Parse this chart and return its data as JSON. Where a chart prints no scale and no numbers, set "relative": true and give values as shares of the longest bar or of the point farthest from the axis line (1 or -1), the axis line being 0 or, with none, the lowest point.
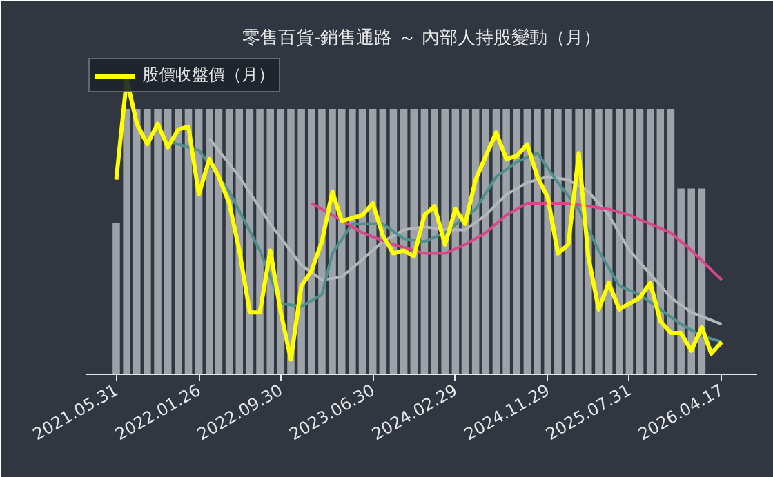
{
  "chart_data": {
    "type": "line",
    "title": "零售百貨-銷售通路 ～ 內部人持股變動（月）",
    "relative": true,
    "legend": "top left",
    "grid": false,
    "marker": "none",
    "line_style": "solid",
    "x": [
      "2021-05",
      "2021-06",
      "2021-07",
      "2021-08",
      "2021-09",
      "2021-10",
      "2021-11",
      "2021-12",
      "2022-01",
      "2022-02",
      "2022-03",
      "2022-04",
      "2022-05",
      "2022-06",
      "2022-07",
      "2022-08",
      "2022-09",
      "2022-10",
      "2022-11",
      "2022-12",
      "2023-01",
      "2023-02",
      "2023-03",
      "2023-04",
      "2023-05",
      "2023-06",
      "2023-07",
      "2023-08",
      "2023-09",
      "2023-10",
      "2023-11",
      "2023-12",
      "2024-01",
      "2024-02",
      "2024-03",
      "2024-04",
      "2024-05",
      "2024-06",
      "2024-07",
      "2024-08",
      "2024-09",
      "2024-10",
      "2024-11",
      "2024-12",
      "2025-01",
      "2025-02",
      "2025-03",
      "2025-04",
      "2025-05",
      "2025-06",
      "2025-07",
      "2025-08",
      "2025-09",
      "2025-10",
      "2025-11",
      "2025-12",
      "2026-01",
      "2026-02",
      "2026-03",
      "2026-04"
    ],
    "xlim": [
      "2021-02-01",
      "2026-07-15"
    ],
    "xticks": [
      {
        "value": "2021-05",
        "label": "2021.05.31"
      },
      {
        "value": "2022-01",
        "label": "2022.01.26"
      },
      {
        "value": "2022-09",
        "label": "2022.09.30"
      },
      {
        "value": "2023-06",
        "label": "2023.06.30"
      },
      {
        "value": "2024-02",
        "label": "2024.02.29"
      },
      {
        "value": "2024-11",
        "label": "2024.11.29"
      },
      {
        "value": "2025-07",
        "label": "2025.07.31"
      },
      {
        "value": "2026-04",
        "label": "2026.04.17"
      }
    ],
    "series": [
      {
        "type": "bar",
        "axis": "y2",
        "color": "#a9aeb4",
        "values": [
          0.57,
          1,
          1,
          1,
          1,
          1,
          1,
          1,
          1,
          1,
          1,
          1,
          1,
          1,
          1,
          1,
          1,
          1,
          1,
          1,
          1,
          1,
          1,
          1,
          1,
          1,
          1,
          1,
          1,
          1,
          1,
          1,
          1,
          1,
          1,
          1,
          1,
          1,
          1,
          1,
          1,
          1,
          1,
          1,
          1,
          1,
          1,
          1,
          1,
          1,
          1,
          1,
          1,
          1,
          1,
          0.7,
          0.7,
          0.7,
          null,
          null
        ]
      },
      {
        "color": "#b4b8bc",
        "x": [
          "2022-02",
          "2022-05",
          "2022-08",
          "2022-11",
          "2023-01",
          "2023-03",
          "2023-05",
          "2023-07",
          "2023-09",
          "2023-11",
          "2024-01",
          "2024-03",
          "2024-05",
          "2024-07",
          "2024-09",
          "2024-11",
          "2025-01",
          "2025-03",
          "2025-05",
          "2025-07",
          "2025-09",
          "2025-11",
          "2026-01",
          "2026-04"
        ],
        "values": [
          0.8,
          0.67,
          0.51,
          0.37,
          0.32,
          0.33,
          0.39,
          0.45,
          0.49,
          0.5,
          0.49,
          0.49,
          0.54,
          0.61,
          0.65,
          0.67,
          0.66,
          0.62,
          0.54,
          0.42,
          0.34,
          0.26,
          0.21,
          0.17
        ]
      },
      {
        "color": "#4f8f8c",
        "x": [
          "2021-10",
          "2022-01",
          "2022-04",
          "2022-07",
          "2022-09",
          "2022-11",
          "2023-01",
          "2023-02",
          "2023-04",
          "2023-07",
          "2023-09",
          "2023-11",
          "2024-01",
          "2024-04",
          "2024-06",
          "2024-08",
          "2024-10",
          "2024-12",
          "2025-02",
          "2025-04",
          "2025-06",
          "2025-08",
          "2025-10",
          "2025-12",
          "2026-02",
          "2026-04"
        ],
        "values": [
          0.79,
          0.76,
          0.62,
          0.42,
          0.24,
          0.23,
          0.27,
          0.41,
          0.51,
          0.51,
          0.46,
          0.45,
          0.48,
          0.56,
          0.67,
          0.72,
          0.75,
          0.65,
          0.56,
          0.42,
          0.3,
          0.27,
          0.22,
          0.17,
          0.13,
          0.11
        ]
      },
      {
        "color": "#d9478a",
        "x": [
          "2022-12",
          "2023-02",
          "2023-05",
          "2023-08",
          "2023-11",
          "2024-01",
          "2024-03",
          "2024-05",
          "2024-07",
          "2024-09",
          "2024-11",
          "2025-01",
          "2025-03",
          "2025-05",
          "2025-07",
          "2025-09",
          "2025-11",
          "2026-01",
          "2026-04"
        ],
        "values": [
          0.58,
          0.54,
          0.48,
          0.44,
          0.41,
          0.41,
          0.44,
          0.48,
          0.54,
          0.58,
          0.58,
          0.58,
          0.57,
          0.56,
          0.54,
          0.51,
          0.48,
          0.42,
          0.32
        ]
      },
      {
        "name": "股價收盤價（月）",
        "color": "#ffff00",
        "values": [
          0.66,
          1.0,
          0.85,
          0.78,
          0.85,
          0.77,
          0.83,
          0.84,
          0.61,
          0.73,
          0.67,
          0.58,
          0.42,
          0.21,
          0.21,
          0.42,
          0.21,
          0.05,
          0.3,
          0.35,
          0.45,
          0.62,
          0.52,
          0.53,
          0.54,
          0.58,
          0.47,
          0.41,
          0.42,
          0.4,
          0.54,
          0.57,
          0.44,
          0.56,
          0.51,
          0.66,
          0.74,
          0.82,
          0.73,
          0.74,
          0.78,
          0.67,
          0.6,
          0.41,
          0.44,
          0.75,
          0.4,
          0.22,
          0.31,
          0.22,
          0.24,
          0.26,
          0.31,
          0.18,
          0.14,
          0.14,
          0.08,
          0.16,
          0.07,
          0.11
        ]
      }
    ]
  }
}
